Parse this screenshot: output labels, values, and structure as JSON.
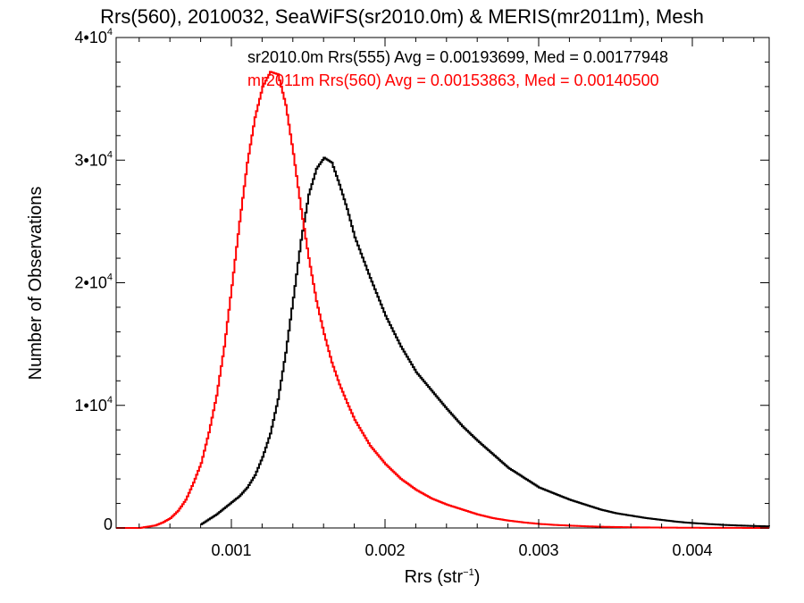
{
  "chart_data": {
    "type": "line",
    "title": "Rrs(560), 2010032, SeaWiFS(sr2010.0m) & MERIS(mr2011m), Mesh",
    "xlabel_base": "Rrs (str",
    "xlabel_sup": "−1",
    "xlabel_close": ")",
    "ylabel": "Number of Observations",
    "xlim": [
      0.00025,
      0.0045
    ],
    "ylim": [
      0,
      40000
    ],
    "x_ticks": [
      {
        "value": 0.001,
        "label": "0.001"
      },
      {
        "value": 0.002,
        "label": "0.002"
      },
      {
        "value": 0.003,
        "label": "0.003"
      },
      {
        "value": 0.004,
        "label": "0.004"
      }
    ],
    "y_ticks": [
      {
        "value": 0,
        "label_base": "0",
        "label_sup": ""
      },
      {
        "value": 10000,
        "label_base": "1•10",
        "label_sup": "4"
      },
      {
        "value": 20000,
        "label_base": "2•10",
        "label_sup": "4"
      },
      {
        "value": 30000,
        "label_base": "3•10",
        "label_sup": "4"
      },
      {
        "value": 40000,
        "label_base": "4•10",
        "label_sup": "4"
      }
    ],
    "grid": false,
    "legend_position": "top-right",
    "series": [
      {
        "name": "sr2010.0m Rrs(555) Avg = 0.00193699, Med = 0.00177948",
        "color": "#000000",
        "x": [
          0.0008,
          0.00085,
          0.0009,
          0.00095,
          0.001,
          0.00105,
          0.0011,
          0.00115,
          0.0012,
          0.00125,
          0.0013,
          0.00135,
          0.0014,
          0.00145,
          0.0015,
          0.00155,
          0.0016,
          0.00165,
          0.0017,
          0.00175,
          0.0018,
          0.0019,
          0.002,
          0.0021,
          0.0022,
          0.0023,
          0.0024,
          0.0025,
          0.0026,
          0.0027,
          0.0028,
          0.0029,
          0.003,
          0.0031,
          0.0032,
          0.0033,
          0.0034,
          0.0035,
          0.0036,
          0.0037,
          0.0038,
          0.0039,
          0.004,
          0.0041,
          0.0042,
          0.0043,
          0.0044,
          0.0045
        ],
        "y": [
          300,
          700,
          1100,
          1600,
          2100,
          2600,
          3300,
          4300,
          5800,
          7700,
          10500,
          14300,
          18800,
          23500,
          27200,
          29300,
          30200,
          29800,
          28000,
          26000,
          23700,
          20400,
          17300,
          14800,
          12700,
          11200,
          9700,
          8300,
          7100,
          6000,
          4900,
          4100,
          3300,
          2800,
          2300,
          1900,
          1500,
          1200,
          1000,
          800,
          650,
          500,
          400,
          320,
          250,
          200,
          160,
          130
        ]
      },
      {
        "name": "mr2011m Rrs(560) Avg = 0.00153863, Med = 0.00140500",
        "color": "#ff0000",
        "x": [
          0.00025,
          0.0004,
          0.00045,
          0.0005,
          0.00055,
          0.0006,
          0.00065,
          0.0007,
          0.00075,
          0.0008,
          0.00085,
          0.0009,
          0.00095,
          0.001,
          0.00105,
          0.0011,
          0.00115,
          0.0012,
          0.00125,
          0.0013,
          0.00135,
          0.0014,
          0.00145,
          0.0015,
          0.00155,
          0.0016,
          0.00165,
          0.0017,
          0.00175,
          0.0018,
          0.0019,
          0.002,
          0.0021,
          0.0022,
          0.0023,
          0.0024,
          0.0025,
          0.0026,
          0.0027,
          0.0028,
          0.0029,
          0.003,
          0.0031,
          0.0032,
          0.0033,
          0.0034,
          0.0035,
          0.0036,
          0.0038,
          0.004,
          0.0042,
          0.0045
        ],
        "y": [
          0,
          0,
          100,
          200,
          450,
          800,
          1400,
          2300,
          3700,
          5300,
          7800,
          10800,
          14800,
          19800,
          25000,
          29800,
          33500,
          36000,
          37200,
          37000,
          34500,
          30500,
          26000,
          22000,
          18500,
          15800,
          13500,
          11700,
          10200,
          8800,
          6700,
          5200,
          4000,
          3100,
          2400,
          1900,
          1500,
          1100,
          800,
          600,
          450,
          330,
          250,
          190,
          140,
          100,
          75,
          55,
          30,
          15,
          8,
          0
        ]
      }
    ]
  }
}
